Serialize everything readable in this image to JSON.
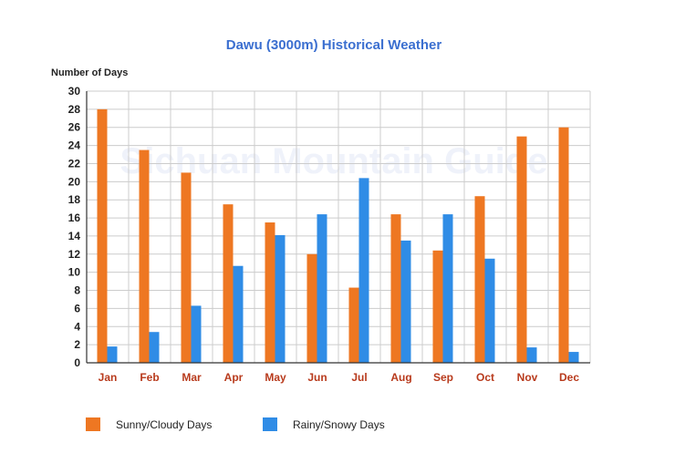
{
  "chart_data": {
    "type": "bar",
    "title": "Dawu (3000m) Historical Weather",
    "ylabel": "Number of Days",
    "xlabel": "",
    "watermark": "Sichuan Mountain Guide",
    "categories": [
      "Jan",
      "Feb",
      "Mar",
      "Apr",
      "May",
      "Jun",
      "Jul",
      "Aug",
      "Sep",
      "Oct",
      "Nov",
      "Dec"
    ],
    "series": [
      {
        "name": "Sunny/Cloudy Days",
        "color": "#ee7722",
        "values": [
          28,
          23.5,
          21,
          17.5,
          15.5,
          12,
          8.3,
          16.4,
          12.4,
          18.4,
          25,
          26
        ]
      },
      {
        "name": "Rainy/Snowy Days",
        "color": "#2f8ce6",
        "values": [
          1.8,
          3.4,
          6.3,
          10.7,
          14.1,
          16.4,
          20.4,
          13.5,
          16.4,
          11.5,
          1.7,
          1.2
        ]
      }
    ],
    "ylim": [
      0,
      30
    ],
    "yticks": [
      0,
      2,
      4,
      6,
      8,
      10,
      12,
      14,
      16,
      18,
      20,
      22,
      24,
      26,
      28,
      30
    ],
    "grid": true,
    "legend_position": "bottom-left"
  }
}
